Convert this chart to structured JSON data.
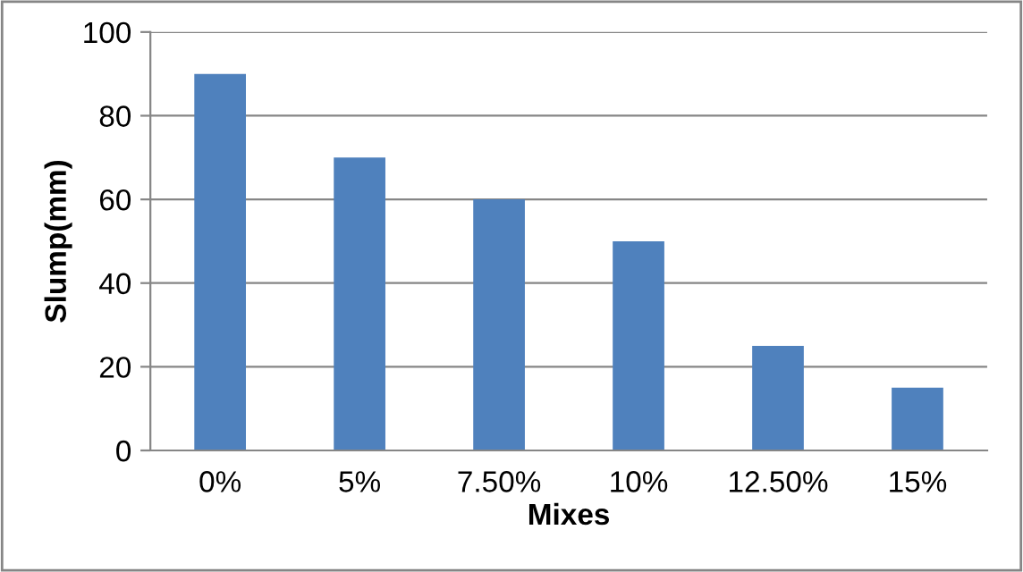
{
  "chart_data": {
    "type": "bar",
    "xlabel": "Mixes",
    "ylabel": "Slump(mm)",
    "categories": [
      "0%",
      "5%",
      "7.50%",
      "10%",
      "12.50%",
      "15%"
    ],
    "values": [
      90,
      70,
      60,
      50,
      25,
      15
    ],
    "color": "#4f81bd",
    "ylim": [
      0,
      100
    ],
    "yticks": [
      0,
      20,
      40,
      60,
      80,
      100
    ],
    "grid": "y"
  }
}
